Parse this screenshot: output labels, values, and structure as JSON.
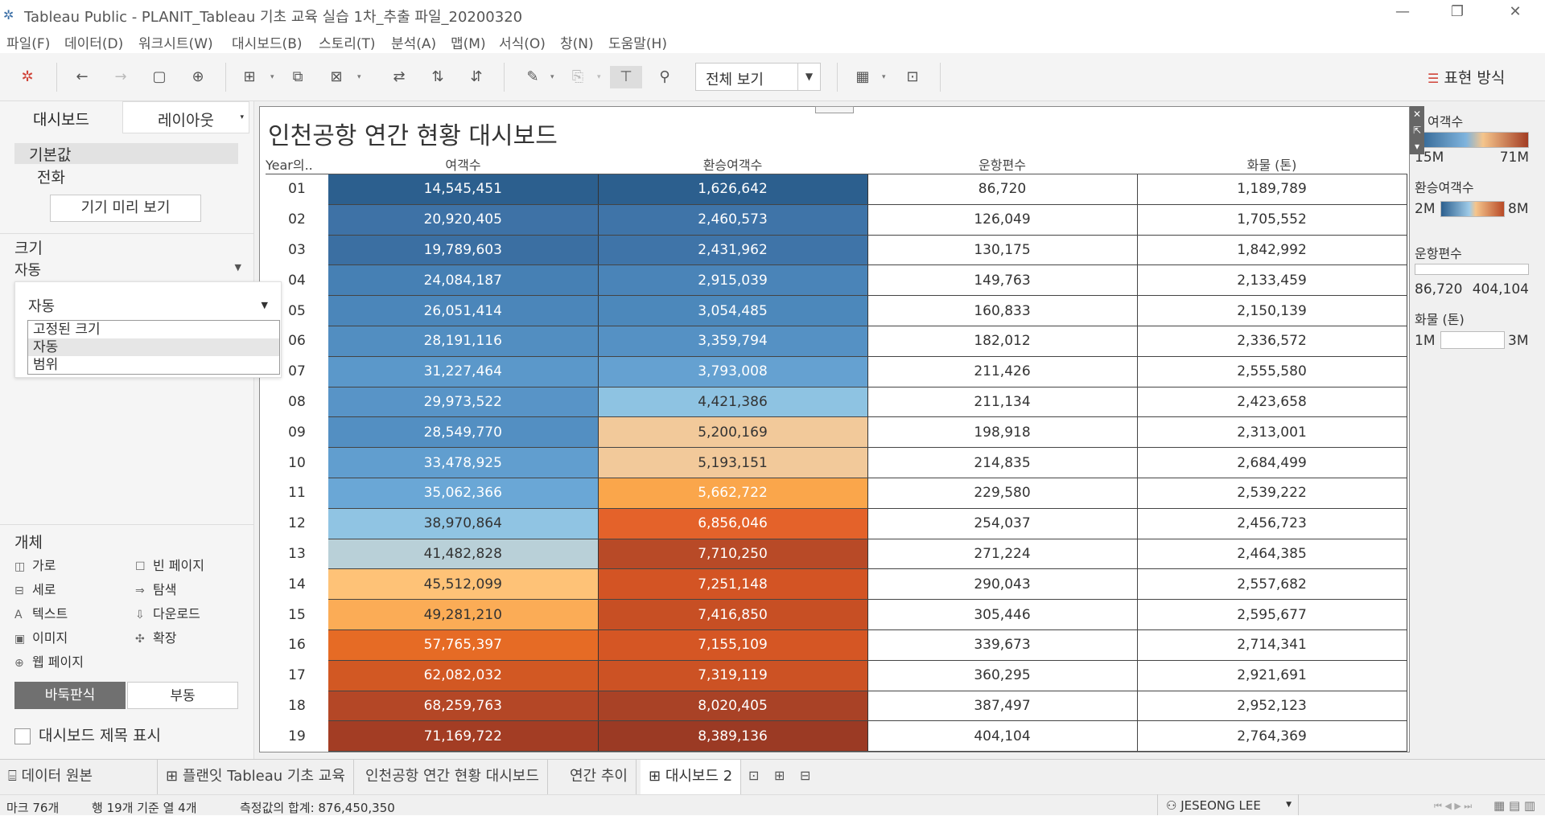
{
  "window": {
    "title": "Tableau Public - PLANIT_Tableau 기초 교육 실습 1차_추출 파일_20200320"
  },
  "menu": [
    "파일(F)",
    "데이터(D)",
    "워크시트(W)",
    "대시보드(B)",
    "스토리(T)",
    "분석(A)",
    "맵(M)",
    "서식(O)",
    "창(N)",
    "도움말(H)"
  ],
  "toolbar": {
    "fit_value": "전체 보기",
    "show_me_label": "표현 방식"
  },
  "left_panel": {
    "tab_dashboard": "대시보드",
    "tab_layout": "레이아웃",
    "device_default": "기본값",
    "device_phone": "전화",
    "preview_button": "기기 미리 보기",
    "size_heading": "크기",
    "size_value": "자동",
    "popup_value": "자동",
    "size_options": [
      "고정된 크기",
      "자동",
      "범위"
    ],
    "objects_heading": "개체",
    "objects": {
      "horizontal": "가로",
      "vertical": "세로",
      "text": "텍스트",
      "image": "이미지",
      "webpage": "웹 페이지",
      "blank": "빈 페이지",
      "navigation": "탐색",
      "download": "다운로드",
      "extension": "확장"
    },
    "tiled_label": "바둑판식",
    "floating_label": "부동",
    "show_title_label": "대시보드 제목 표시"
  },
  "dashboard": {
    "title": "인천공항 연간 현황 대시보드",
    "columns": [
      "Year의..",
      "여객수",
      "환승여객수",
      "운항편수",
      "화물 (톤)"
    ],
    "rows": [
      {
        "year": "01",
        "passengers": "14,545,451",
        "transfer": "1,626,642",
        "flights": "86,720",
        "cargo": "1,189,789",
        "pc": "#2c5f8e",
        "tc": "#2c5f8e"
      },
      {
        "year": "02",
        "passengers": "20,920,405",
        "transfer": "2,460,573",
        "flights": "126,049",
        "cargo": "1,705,552",
        "pc": "#3e72a6",
        "tc": "#3f74a8"
      },
      {
        "year": "03",
        "passengers": "19,789,603",
        "transfer": "2,431,962",
        "flights": "130,175",
        "cargo": "1,842,992",
        "pc": "#3b6fa2",
        "tc": "#3f74a8"
      },
      {
        "year": "04",
        "passengers": "24,084,187",
        "transfer": "2,915,039",
        "flights": "149,763",
        "cargo": "2,133,459",
        "pc": "#4680b4",
        "tc": "#4a84b8"
      },
      {
        "year": "05",
        "passengers": "26,051,414",
        "transfer": "3,054,485",
        "flights": "160,833",
        "cargo": "2,150,139",
        "pc": "#4b86ba",
        "tc": "#4c88bb"
      },
      {
        "year": "06",
        "passengers": "28,191,116",
        "transfer": "3,359,794",
        "flights": "182,012",
        "cargo": "2,336,572",
        "pc": "#528ec1",
        "tc": "#5591c4"
      },
      {
        "year": "07",
        "passengers": "31,227,464",
        "transfer": "3,793,008",
        "flights": "211,426",
        "cargo": "2,555,580",
        "pc": "#5b98ca",
        "tc": "#65a1d1"
      },
      {
        "year": "08",
        "passengers": "29,973,522",
        "transfer": "4,421,386",
        "flights": "211,134",
        "cargo": "2,423,658",
        "pc": "#5894c7",
        "tc": "#8ec3e2"
      },
      {
        "year": "09",
        "passengers": "28,549,770",
        "transfer": "5,200,169",
        "flights": "198,918",
        "cargo": "2,313,001",
        "pc": "#538fc2",
        "tc": "#f2c99a"
      },
      {
        "year": "10",
        "passengers": "33,478,925",
        "transfer": "5,193,151",
        "flights": "214,835",
        "cargo": "2,684,499",
        "pc": "#619ecf",
        "tc": "#f2c99a"
      },
      {
        "year": "11",
        "passengers": "35,062,366",
        "transfer": "5,662,722",
        "flights": "229,580",
        "cargo": "2,539,222",
        "pc": "#6aa7d6",
        "tc": "#faa64b"
      },
      {
        "year": "12",
        "passengers": "38,970,864",
        "transfer": "6,856,046",
        "flights": "254,037",
        "cargo": "2,456,723",
        "pc": "#90c4e3",
        "tc": "#e4622a"
      },
      {
        "year": "13",
        "passengers": "41,482,828",
        "transfer": "7,710,250",
        "flights": "271,224",
        "cargo": "2,464,385",
        "pc": "#b9d0d8",
        "tc": "#b84a27"
      },
      {
        "year": "14",
        "passengers": "45,512,099",
        "transfer": "7,251,148",
        "flights": "290,043",
        "cargo": "2,557,682",
        "pc": "#fec277",
        "tc": "#d35424"
      },
      {
        "year": "15",
        "passengers": "49,281,210",
        "transfer": "7,416,850",
        "flights": "305,446",
        "cargo": "2,595,677",
        "pc": "#fbac56",
        "tc": "#c74f24"
      },
      {
        "year": "16",
        "passengers": "57,765,397",
        "transfer": "7,155,109",
        "flights": "339,673",
        "cargo": "2,714,341",
        "pc": "#e66b25",
        "tc": "#d55624"
      },
      {
        "year": "17",
        "passengers": "62,082,032",
        "transfer": "7,319,119",
        "flights": "360,295",
        "cargo": "2,921,691",
        "pc": "#d25823",
        "tc": "#cc5224"
      },
      {
        "year": "18",
        "passengers": "68,259,763",
        "transfer": "8,020,405",
        "flights": "387,497",
        "cargo": "2,952,123",
        "pc": "#b44726",
        "tc": "#a94226"
      },
      {
        "year": "19",
        "passengers": "71,169,722",
        "transfer": "8,389,136",
        "flights": "404,104",
        "cargo": "2,764,369",
        "pc": "#a33d24",
        "tc": "#9b3a24"
      }
    ]
  },
  "legends": {
    "passengers": {
      "title": "여객수",
      "min": "15M",
      "max": "71M"
    },
    "transfer": {
      "title": "환승여객수",
      "min": "2M",
      "max": "8M"
    },
    "flights": {
      "title": "운항편수",
      "min": "86,720",
      "max": "404,104"
    },
    "cargo": {
      "title": "화물 (톤)",
      "min": "1M",
      "max": "3M"
    }
  },
  "sheet_tabs": {
    "data_source": "데이터 원본",
    "tabs": [
      "플랜잇 Tableau 기초 교육",
      "인천공항 연간 현황 대시보드",
      "연간 추이",
      "대시보드 2"
    ]
  },
  "status": {
    "marks": "마크 76개",
    "rows_cols": "행 19개 기준 열 4개",
    "sum": "측정값의 합계: 876,450,350",
    "user": "JESEONG LEE"
  },
  "colors": {
    "blue_low": "#2c5f8e",
    "orange_high": "#a33d24",
    "accent_red": "#d0453a"
  }
}
